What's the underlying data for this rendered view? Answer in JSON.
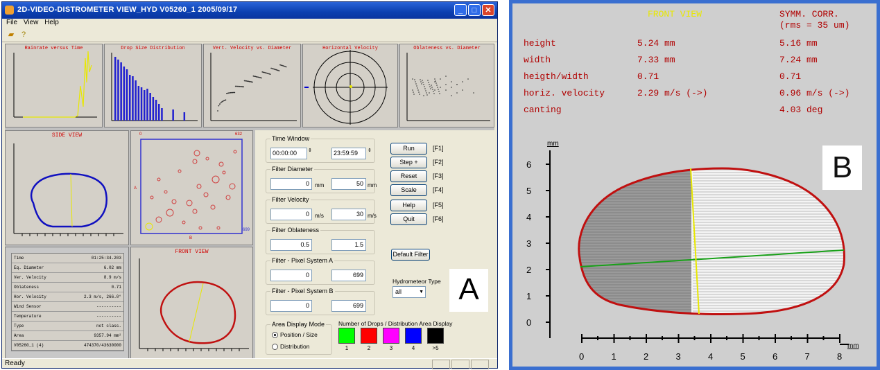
{
  "window": {
    "title": "2D-VIDEO-DISTROMETER  VIEW_HYD  V05260_1  2005/09/17",
    "menu": [
      "File",
      "View",
      "Help"
    ],
    "status": "Ready"
  },
  "plots": {
    "raterate": "Rainrate versus Time",
    "dsd": "Drop Size Distribution",
    "vel": "Vert. Velocity vs. Diameter",
    "horiz": "Horizontal Velocity",
    "obl": "Oblateness vs. Diameter",
    "side": "SIDE VIEW",
    "front": "FRONT VIEW",
    "pos_tl": "0",
    "pos_tr": "632",
    "pos_bottom": "B",
    "pos_left": "A",
    "pos_right": "699"
  },
  "info_table": [
    {
      "label": "Time",
      "value": "01:25:34.203"
    },
    {
      "label": "Eq. Diameter",
      "value": "6.02 mm"
    },
    {
      "label": "Ver. Velocity",
      "value": "8.9 m/s"
    },
    {
      "label": "Oblateness",
      "value": "0.71"
    },
    {
      "label": "Hor. Velocity",
      "value": "2.3 m/s, 266.0°"
    },
    {
      "label": "Wind Sensor",
      "value": "----------"
    },
    {
      "label": "Temperature",
      "value": "----------"
    },
    {
      "label": "Type",
      "value": "not class."
    },
    {
      "label": "Area",
      "value": "9357.94 mm²"
    },
    {
      "label": "V05260_1 (4)",
      "value": "474370/43630000"
    }
  ],
  "controls": {
    "time_window": {
      "label": "Time Window",
      "start": "00:00:00",
      "end": "23:59:59"
    },
    "filter_diameter": {
      "label": "Filter Diameter",
      "min": "0",
      "max": "50",
      "unit": "mm"
    },
    "filter_velocity": {
      "label": "Filter Velocity",
      "min": "0",
      "max": "30",
      "unit": "m/s"
    },
    "filter_oblateness": {
      "label": "Filter Oblateness",
      "min": "0.5",
      "max": "1.5"
    },
    "filter_pixel_a": {
      "label": "Filter - Pixel System A",
      "min": "0",
      "max": "699"
    },
    "filter_pixel_b": {
      "label": "Filter - Pixel System B",
      "min": "0",
      "max": "699"
    },
    "buttons": [
      {
        "label": "Run",
        "key": "[F1]"
      },
      {
        "label": "Step +",
        "key": "[F2]"
      },
      {
        "label": "Reset",
        "key": "[F3]"
      },
      {
        "label": "Scale",
        "key": "[F4]"
      },
      {
        "label": "Help",
        "key": "[F5]"
      },
      {
        "label": "Quit",
        "key": "[F6]"
      }
    ],
    "default_filter": "Default Filter",
    "hydrometeor_type": {
      "label": "Hydrometeor Type",
      "value": "all"
    },
    "area_display": {
      "label": "Area Display Mode",
      "opt1": "Position / Size",
      "opt2": "Distribution"
    },
    "drops_label": "Number of Drops / Distribution Area Display",
    "drop_colors": [
      {
        "label": "1",
        "color": "#00ff00"
      },
      {
        "label": "2",
        "color": "#ff0000"
      },
      {
        "label": "3",
        "color": "#ff00ff"
      },
      {
        "label": "4",
        "color": "#0000ff"
      },
      {
        "label": ">5",
        "color": "#000000"
      }
    ]
  },
  "panel_labels": {
    "a": "A",
    "b": "B"
  },
  "front_view": {
    "title": "FRONT VIEW",
    "sym_title": "SYMM. CORR.",
    "sym_sub": "(rms = 35 um)",
    "rows": [
      {
        "label": "height",
        "v1": "5.24 mm",
        "v2": "5.16 mm"
      },
      {
        "label": "width",
        "v1": "7.33 mm",
        "v2": "7.24 mm"
      },
      {
        "label": "heigth/width",
        "v1": "0.71",
        "v2": "0.71"
      },
      {
        "label": "horiz. velocity",
        "v1": "2.29 m/s (->)",
        "v2": "0.96 m/s (->)"
      },
      {
        "label": "canting",
        "v1": "",
        "v2": "4.03 deg"
      }
    ],
    "y_unit": "mm",
    "x_unit": "mm",
    "y_ticks": [
      "0",
      "1",
      "2",
      "3",
      "4",
      "5",
      "6"
    ],
    "x_ticks": [
      "0",
      "1",
      "2",
      "3",
      "4",
      "5",
      "6",
      "7",
      "8"
    ]
  }
}
